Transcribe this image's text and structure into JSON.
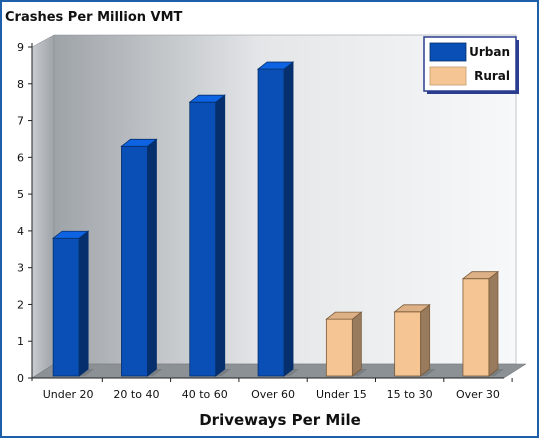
{
  "chart_data": {
    "type": "bar",
    "title": "",
    "ylabel": "Crashes Per Million VMT",
    "xlabel": "Driveways Per Mile",
    "ylim": [
      0,
      9
    ],
    "yticks": [
      "0",
      "1",
      "2",
      "3",
      "4",
      "5",
      "6",
      "7",
      "8",
      "9"
    ],
    "grid": false,
    "legend_position": "top-right",
    "categories": [
      "Under 20",
      "20 to 40",
      "40 to 60",
      "Over 60",
      "Under 15",
      "15 to 30",
      "Over 30"
    ],
    "values": [
      3.8,
      6.3,
      7.5,
      8.4,
      1.6,
      1.8,
      2.7
    ],
    "bar_group": [
      "Urban",
      "Urban",
      "Urban",
      "Urban",
      "Rural",
      "Rural",
      "Rural"
    ],
    "series": [
      {
        "name": "Urban",
        "color": "#0a4fb5"
      },
      {
        "name": "Rural",
        "color": "#f5c594"
      }
    ]
  }
}
